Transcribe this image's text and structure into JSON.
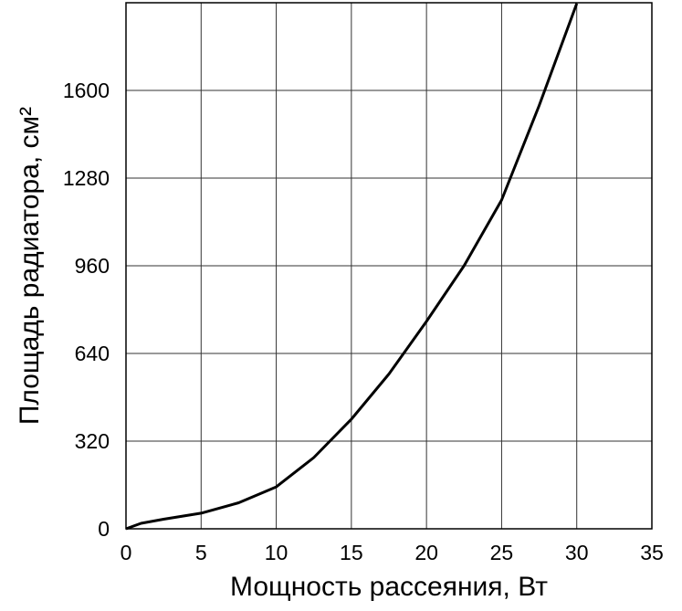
{
  "chart_data": {
    "type": "line",
    "xlabel": "Мощность рассеяния, Вт",
    "ylabel": "Площадь радиатора, см²",
    "x": [
      0,
      1,
      2.5,
      5,
      7.5,
      10,
      12.5,
      15,
      17.5,
      20,
      22.5,
      25,
      27.5,
      30
    ],
    "series": [
      {
        "color": "#000000",
        "values": [
          0,
          20,
          35,
          57,
          95,
          153,
          260,
          400,
          565,
          757,
          960,
          1200,
          1545,
          1917
        ]
      }
    ],
    "xlim": [
      0,
      35
    ],
    "xticks": [
      0,
      5,
      10,
      15,
      20,
      25,
      30,
      35
    ],
    "ylim": [
      0,
      1920
    ],
    "yticks": [
      0,
      320,
      640,
      960,
      1280,
      1600
    ],
    "grid": true
  }
}
